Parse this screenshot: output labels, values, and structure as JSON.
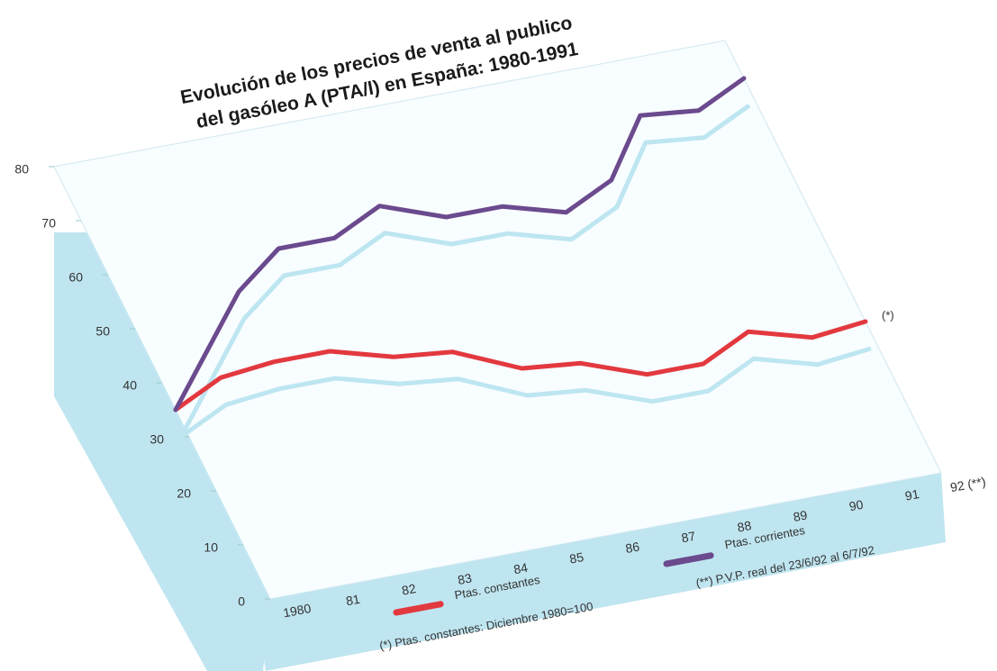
{
  "chart_data": {
    "type": "line",
    "title": [
      "Evolución de los precios de venta al publico",
      "del gasóleo A (PTA/l) en España: 1980-1991"
    ],
    "categories": [
      "1980",
      "81",
      "82",
      "83",
      "84",
      "85",
      "86",
      "87",
      "88",
      "89",
      "90",
      "91",
      "92 (**)"
    ],
    "series": [
      {
        "name": "Ptas. constantes",
        "color": "#e2393f",
        "values": [
          35,
          39,
          40,
          40,
          37,
          36,
          31,
          30,
          26,
          26,
          30,
          27,
          28
        ]
      },
      {
        "name": "Ptas. corrientes",
        "color": "#6b4a8e",
        "values": [
          35,
          44,
          53,
          59,
          59,
          63,
          59,
          59,
          56,
          60,
          70,
          69,
          73
        ]
      }
    ],
    "shadow_color": "#bde6f1",
    "ylim": [
      0,
      80
    ],
    "yticks": [
      0,
      10,
      20,
      30,
      40,
      50,
      60,
      70,
      80
    ],
    "end_annotation": "(*)",
    "notes": [
      "(*) Ptas. constantes: Diciembre 1980=100",
      "(**) P.V.P. real del 23/6/92 al 6/7/92"
    ]
  }
}
